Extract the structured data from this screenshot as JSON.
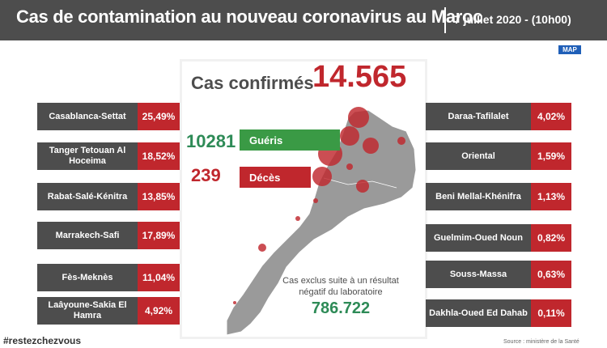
{
  "header": {
    "title": "Cas de contamination au nouveau coronavirus au Maroc",
    "date": "7 juillet 2020 - (10h00)"
  },
  "logo": {
    "text": "MAP"
  },
  "confirmed": {
    "label": "Cas confirmés",
    "value": "14.565"
  },
  "recovered": {
    "value": "10281",
    "label": "Guéris"
  },
  "deaths": {
    "value": "239",
    "label": "Décès"
  },
  "excluded": {
    "text": "Cas exclus suite à un résultat négatif du laboratoire",
    "value": "786.722"
  },
  "regions_left": [
    {
      "name": "Casablanca-Settat",
      "pct": "25,49%"
    },
    {
      "name": "Tanger Tetouan Al Hoceima",
      "pct": "18,52%"
    },
    {
      "name": "Rabat-Salé-Kénitra",
      "pct": "13,85%"
    },
    {
      "name": "Marrakech-Safi",
      "pct": "17,89%"
    },
    {
      "name": "Fès-Meknès",
      "pct": "11,04%"
    },
    {
      "name": "Laâyoune-Sakia El Hamra",
      "pct": "4,92%"
    }
  ],
  "regions_right": [
    {
      "name": "Daraa-Tafilalet",
      "pct": "4,02%"
    },
    {
      "name": "Oriental",
      "pct": "1,59%"
    },
    {
      "name": "Beni Mellal-Khénifra",
      "pct": "1,13%"
    },
    {
      "name": "Guelmim-Oued Noun",
      "pct": "0,82%"
    },
    {
      "name": "Souss-Massa",
      "pct": "0,63%"
    },
    {
      "name": "Dakhla-Oued Ed Dahab",
      "pct": "0,11%"
    }
  ],
  "footer": {
    "hashtag": "#restezchezvous",
    "source": "Source : ministère de la Santé"
  },
  "colors": {
    "dark": "#4d4d4d",
    "red": "#c0272d",
    "green": "#2e8b57"
  }
}
